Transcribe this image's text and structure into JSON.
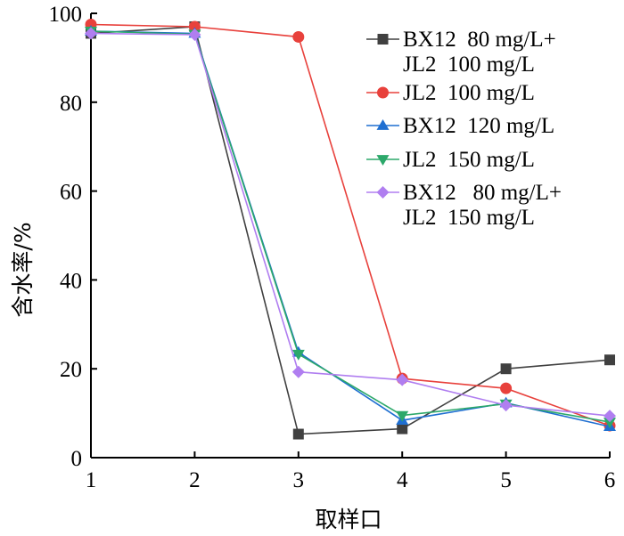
{
  "chart_data": {
    "type": "line",
    "title": "",
    "xlabel": "取样口",
    "ylabel": "含水率/%",
    "x": [
      1,
      2,
      3,
      4,
      5,
      6
    ],
    "xlim": [
      1,
      6
    ],
    "ylim": [
      0,
      100
    ],
    "xticks": [
      "1",
      "2",
      "3",
      "4",
      "5",
      "6"
    ],
    "yticks": [
      "0",
      "20",
      "40",
      "60",
      "80",
      "100"
    ],
    "grid": false,
    "legend_position": "top-right",
    "series": [
      {
        "name_lines": [
          "BX12  80 mg/L+",
          "JL2  100 mg/L"
        ],
        "marker": "square",
        "color": "#404040",
        "values": [
          95.5,
          97.0,
          5.3,
          6.5,
          20.0,
          22.0
        ]
      },
      {
        "name_lines": [
          "JL2  100 mg/L"
        ],
        "marker": "circle",
        "color": "#e8413c",
        "values": [
          97.5,
          97.0,
          94.7,
          17.8,
          15.6,
          7.2
        ]
      },
      {
        "name_lines": [
          "BX12  120 mg/L"
        ],
        "marker": "triangle-up",
        "color": "#1f6fd1",
        "values": [
          96.0,
          95.5,
          23.7,
          8.4,
          12.3,
          7.0
        ]
      },
      {
        "name_lines": [
          "JL2  150 mg/L"
        ],
        "marker": "triangle-down",
        "color": "#2ca86a",
        "values": [
          96.0,
          95.3,
          23.3,
          9.5,
          12.1,
          8.0
        ]
      },
      {
        "name_lines": [
          "BX12   80 mg/L+",
          "JL2  150 mg/L"
        ],
        "marker": "diamond",
        "color": "#b07ef0",
        "values": [
          95.5,
          95.2,
          19.3,
          17.5,
          11.8,
          9.4
        ]
      }
    ]
  }
}
